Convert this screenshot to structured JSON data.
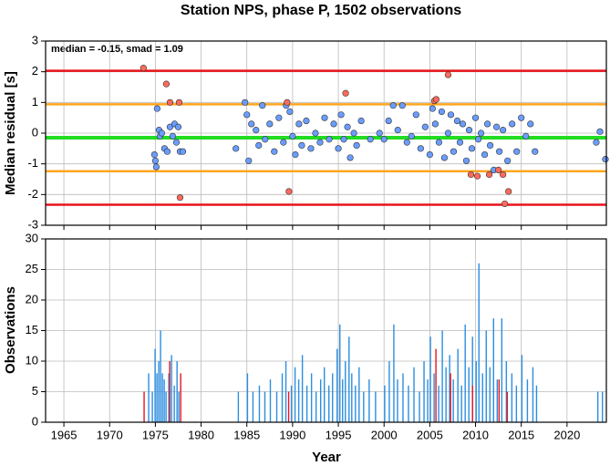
{
  "chart_data": [
    {
      "type": "scatter",
      "title": "Station NPS, phase P, 1502 observations",
      "annotation": "median = -0.15, smad = 1.09",
      "y_label": "Median residual [s]",
      "xlim": [
        1963,
        2024.3
      ],
      "xticks": [
        1965,
        1970,
        1975,
        1980,
        1985,
        1990,
        1995,
        2000,
        2005,
        2010,
        2015,
        2020
      ],
      "ylim": [
        -3,
        3
      ],
      "yticks": [
        -3,
        -2,
        -1,
        0,
        1,
        2,
        3
      ],
      "grid": true,
      "hlines": [
        {
          "value": 2.03,
          "color": "#e8141a"
        },
        {
          "value": 0.94,
          "color": "#ffa61e"
        },
        {
          "value": -0.15,
          "color": "#22dd22"
        },
        {
          "value": -1.24,
          "color": "#ffa61e"
        },
        {
          "value": -2.33,
          "color": "#e8141a"
        }
      ],
      "series": [
        {
          "color": "#6a9dff",
          "x": [
            1974.9,
            1975,
            1975.1,
            1975.2,
            1975.4,
            1975.5,
            1975.7,
            1976,
            1976.3,
            1976.6,
            1976.9,
            1977.1,
            1977.3,
            1977.5,
            1977.7,
            1978,
            1983.8,
            1984.8,
            1985,
            1985.2,
            1985.5,
            1986,
            1986.3,
            1986.7,
            1987,
            1987.5,
            1988,
            1988.5,
            1989,
            1989.3,
            1989.7,
            1990,
            1990.3,
            1990.7,
            1991,
            1991.5,
            1992,
            1992.5,
            1993,
            1993.5,
            1994,
            1994.5,
            1995,
            1995.3,
            1995.6,
            1996,
            1996.3,
            1996.7,
            1997,
            1997.5,
            1998.5,
            1999.5,
            2000,
            2000.5,
            2001,
            2001.5,
            2002,
            2002.5,
            2003,
            2003.5,
            2004,
            2004.5,
            2005,
            2005.3,
            2005.6,
            2006,
            2006.3,
            2006.6,
            2007,
            2007.3,
            2007.6,
            2008,
            2008.3,
            2008.6,
            2009,
            2009.3,
            2009.6,
            2010,
            2010.3,
            2010.6,
            2011,
            2011.3,
            2011.6,
            2012,
            2012.3,
            2012.6,
            2013,
            2013.5,
            2014,
            2014.5,
            2015,
            2015.5,
            2016,
            2016.5,
            2023.2,
            2023.6,
            2024.2
          ],
          "values": [
            -0.7,
            -0.9,
            -1.1,
            0.8,
            0.1,
            -0.1,
            0.0,
            -0.5,
            -0.6,
            0.2,
            -0.1,
            0.3,
            -0.3,
            0.2,
            -0.6,
            -0.6,
            -0.5,
            1.0,
            0.6,
            -0.9,
            0.3,
            0.1,
            -0.4,
            0.9,
            -0.2,
            0.3,
            -0.6,
            0.5,
            -0.3,
            0.9,
            0.7,
            -0.1,
            -0.7,
            0.3,
            -0.4,
            0.4,
            -0.5,
            0.0,
            -0.3,
            0.5,
            -0.2,
            0.3,
            -0.5,
            0.6,
            -0.2,
            0.2,
            -0.8,
            0.0,
            -0.4,
            0.4,
            -0.2,
            0.0,
            -0.2,
            0.4,
            0.9,
            0.1,
            0.9,
            -0.3,
            -0.1,
            0.6,
            -0.5,
            0.2,
            -0.7,
            0.8,
            0.3,
            -0.3,
            0.7,
            -0.8,
            0.0,
            0.6,
            -0.6,
            0.4,
            -0.3,
            0.3,
            -0.9,
            0.1,
            -0.5,
            0.5,
            -0.2,
            0.0,
            -0.7,
            0.3,
            -0.4,
            -1.2,
            0.2,
            -0.6,
            0.1,
            -0.9,
            0.3,
            -0.6,
            0.5,
            -0.1,
            0.3,
            -0.6,
            -0.3,
            0.05,
            -0.85
          ]
        },
        {
          "color": "#ff6a5a",
          "x": [
            1973.7,
            1976.2,
            1976.6,
            1977.6,
            1977.7,
            1989.4,
            1989.6,
            1995.8,
            2005.5,
            2005.7,
            2007,
            2009.5,
            2010.2,
            2011.5,
            2012.5,
            2013,
            2013.2,
            2013.6
          ],
          "values": [
            2.12,
            1.6,
            1.0,
            1.0,
            -2.1,
            1.0,
            -1.9,
            1.3,
            1.05,
            1.1,
            1.9,
            -1.35,
            -1.4,
            -1.35,
            -1.2,
            -1.35,
            -2.3,
            -1.9
          ]
        }
      ]
    },
    {
      "type": "bar",
      "x_label": "Year",
      "y_label": "Observations",
      "xlim": [
        1963,
        2024.3
      ],
      "xticks": [
        1965,
        1970,
        1975,
        1980,
        1985,
        1990,
        1995,
        2000,
        2005,
        2010,
        2015,
        2020
      ],
      "ylim": [
        0,
        30
      ],
      "yticks": [
        0,
        5,
        10,
        15,
        20,
        25,
        30
      ],
      "grid": true,
      "series": [
        {
          "color": "#2b8ee0",
          "x": [
            1974.2,
            1974.6,
            1974.9,
            1975.1,
            1975.3,
            1975.5,
            1975.7,
            1975.9,
            1976.1,
            1976.4,
            1976.7,
            1977,
            1977.3,
            1977.5,
            1984,
            1985,
            1985.6,
            1986.3,
            1986.9,
            1987.5,
            1988.2,
            1988.8,
            1989.2,
            1989.8,
            1990.2,
            1990.6,
            1991,
            1991.5,
            1992,
            1992.5,
            1993,
            1993.4,
            1993.9,
            1994.3,
            1994.8,
            1995.1,
            1995.4,
            1995.7,
            1996.1,
            1996.4,
            1996.8,
            1997.2,
            1997.7,
            1998.3,
            1999,
            2000,
            2000.5,
            2001,
            2001.4,
            2002,
            2002.6,
            2003.2,
            2003.8,
            2004.3,
            2004.7,
            2005,
            2005.4,
            2005.9,
            2006.3,
            2006.7,
            2007.1,
            2007.5,
            2008,
            2008.4,
            2008.8,
            2009.2,
            2009.6,
            2010,
            2010.3,
            2010.7,
            2011.1,
            2011.5,
            2011.9,
            2012.3,
            2012.8,
            2013.3,
            2013.9,
            2014.4,
            2015,
            2015.6,
            2016.2,
            2016.6,
            2023.3,
            2023.8
          ],
          "values": [
            8,
            5,
            12,
            8,
            10,
            15,
            8,
            7,
            5,
            8,
            11,
            6,
            10,
            5,
            5,
            8,
            5,
            6,
            5,
            7,
            5,
            8,
            10,
            6,
            9,
            7,
            11,
            6,
            8,
            5,
            7,
            9,
            6,
            8,
            12,
            16,
            7,
            10,
            14,
            8,
            6,
            9,
            5,
            7,
            5,
            6,
            10,
            16,
            7,
            8,
            6,
            9,
            5,
            10,
            7,
            14,
            8,
            6,
            15,
            9,
            11,
            7,
            12,
            6,
            16,
            9,
            14,
            10,
            26,
            8,
            15,
            9,
            17,
            7,
            17,
            10,
            8,
            6,
            11,
            7,
            9,
            6,
            5,
            5
          ]
        },
        {
          "color": "#e8141a",
          "x": [
            1973.7,
            1976.5,
            1977.7,
            1989.5,
            2005.6,
            2007.2,
            2009.6,
            2012.5,
            2013.4
          ],
          "values": [
            5,
            10,
            8,
            5,
            12,
            8,
            6,
            7,
            5
          ]
        }
      ]
    }
  ]
}
